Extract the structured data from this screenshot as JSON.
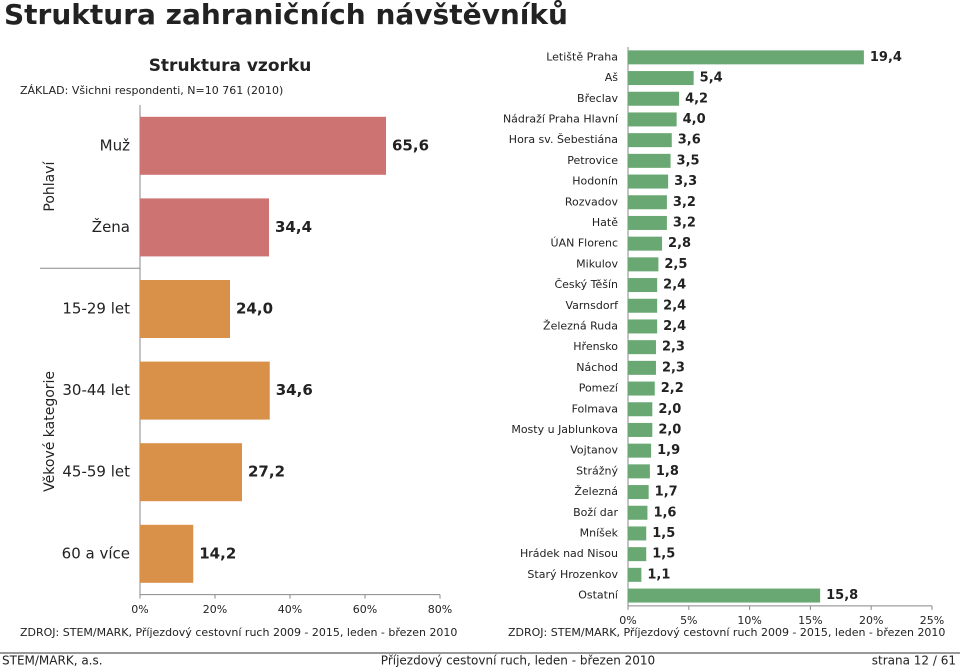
{
  "title": "Struktura zahraničních návštěvníků",
  "footer": {
    "left": "STEM/MARK, a.s.",
    "center": "Příjezdový cestovní ruch, leden - březen 2010",
    "right": "strana 12 / 61"
  },
  "chart_data": [
    {
      "type": "bar",
      "orientation": "horizontal",
      "title": "Struktura vzorku",
      "note": "ZÁKLAD: Všichni respondenti, N=10 761 (2010)",
      "source": "ZDROJ: STEM/MARK, Příjezdový cestovní ruch 2009 - 2015, leden - březen 2010",
      "groups": [
        "Pohlaví",
        "Pohlaví",
        "Věkové kategorie",
        "Věkové kategorie",
        "Věkové kategorie",
        "Věkové kategorie"
      ],
      "categories": [
        "Muž",
        "Žena",
        "15-29 let",
        "30-44 let",
        "45-59 let",
        "60 a více"
      ],
      "values": [
        65.6,
        34.4,
        24.0,
        34.6,
        27.2,
        14.2
      ],
      "value_labels": [
        "65,6",
        "34,4",
        "24,0",
        "34,6",
        "27,2",
        "14,2"
      ],
      "colors": [
        "#cd7371",
        "#cd7371",
        "#d9914a",
        "#d9914a",
        "#d9914a",
        "#d9914a"
      ],
      "xlim": [
        0,
        80
      ],
      "xticks": [
        {
          "value": 0,
          "label": "0%"
        },
        {
          "value": 20,
          "label": "20%"
        },
        {
          "value": 40,
          "label": "40%"
        },
        {
          "value": 60,
          "label": "60%"
        },
        {
          "value": 80,
          "label": "80%"
        }
      ]
    },
    {
      "type": "bar",
      "orientation": "horizontal",
      "source": "ZDROJ: STEM/MARK, Příjezdový cestovní ruch 2009 - 2015, leden - březen 2010",
      "categories": [
        "Letiště Praha",
        "Aš",
        "Břeclav",
        "Nádraží Praha Hlavní",
        "Hora sv. Šebestiána",
        "Petrovice",
        "Hodonín",
        "Rozvadov",
        "Hatě",
        "ÚAN Florenc",
        "Mikulov",
        "Český Těšín",
        "Varnsdorf",
        "Železná Ruda",
        "Hřensko",
        "Náchod",
        "Pomezí",
        "Folmava",
        "Mosty u Jablunkova",
        "Vojtanov",
        "Strážný",
        "Železná",
        "Boží dar",
        "Mníšek",
        "Hrádek nad Nisou",
        "Starý Hrozenkov",
        "Ostatní"
      ],
      "values": [
        19.4,
        5.4,
        4.2,
        4.0,
        3.6,
        3.5,
        3.3,
        3.2,
        3.2,
        2.8,
        2.5,
        2.4,
        2.4,
        2.4,
        2.3,
        2.3,
        2.2,
        2.0,
        2.0,
        1.9,
        1.8,
        1.7,
        1.6,
        1.5,
        1.5,
        1.1,
        15.8
      ],
      "value_labels": [
        "19,4",
        "5,4",
        "4,2",
        "4,0",
        "3,6",
        "3,5",
        "3,3",
        "3,2",
        "3,2",
        "2,8",
        "2,5",
        "2,4",
        "2,4",
        "2,4",
        "2,3",
        "2,3",
        "2,2",
        "2,0",
        "2,0",
        "1,9",
        "1,8",
        "1,7",
        "1,6",
        "1,5",
        "1,5",
        "1,1",
        "15,8"
      ],
      "color": "#6aa873",
      "xlim": [
        0,
        25
      ],
      "xticks": [
        {
          "value": 0,
          "label": "0%"
        },
        {
          "value": 5,
          "label": "5%"
        },
        {
          "value": 10,
          "label": "10%"
        },
        {
          "value": 15,
          "label": "15%"
        },
        {
          "value": 20,
          "label": "20%"
        },
        {
          "value": 25,
          "label": "25%"
        }
      ]
    }
  ]
}
